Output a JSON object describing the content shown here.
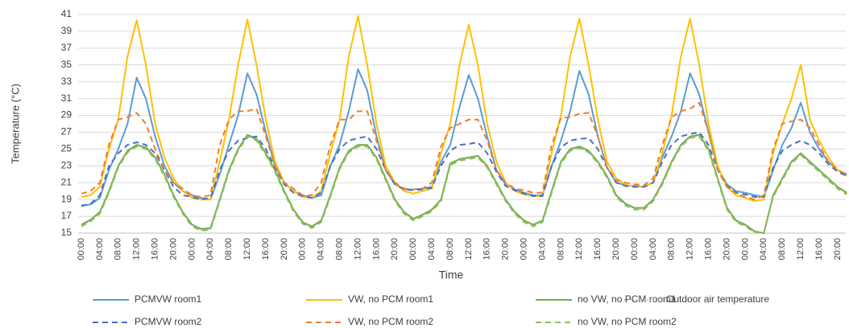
{
  "chart_data": {
    "type": "line",
    "x_label": "Time",
    "y_label": "Temperature (°C)",
    "categories": [
      "00:00",
      null,
      "04:00",
      null,
      "08:00",
      null,
      "12:00",
      null,
      "16:00",
      null,
      "20:00",
      null,
      "00:00",
      null,
      "04:00",
      null,
      "08:00",
      null,
      "12:00",
      null,
      "16:00",
      null,
      "20:00",
      null,
      "00:00",
      null,
      "04:00",
      null,
      "08:00",
      null,
      "12:00",
      null,
      "16:00",
      null,
      "20:00",
      null,
      "00:00",
      null,
      "04:00",
      null,
      "08:00",
      null,
      "12:00",
      null,
      "16:00",
      null,
      "20:00",
      null,
      "00:00",
      null,
      "04:00",
      null,
      "08:00",
      null,
      "12:00",
      null,
      "16:00",
      null,
      "20:00",
      null,
      "00:00",
      null,
      "04:00",
      null,
      "08:00",
      null,
      "12:00",
      null,
      "16:00",
      null,
      "20:00",
      null,
      "00:00",
      null,
      "04:00",
      null,
      "08:00",
      null,
      "12:00",
      null,
      "16:00",
      null,
      "20:00",
      null
    ],
    "ylim": [
      15,
      41
    ],
    "yticks": [
      15,
      17,
      19,
      21,
      23,
      25,
      27,
      29,
      31,
      33,
      35,
      37,
      39,
      41
    ],
    "grid": true,
    "series": [
      {
        "name": "PCMVW room1",
        "color": "#5b9bd5",
        "dash": "solid",
        "values": [
          18.3,
          18.4,
          19.2,
          22.5,
          25.0,
          28.0,
          33.5,
          31.0,
          26.5,
          23.0,
          21.0,
          20.0,
          19.5,
          19.2,
          19.0,
          22.0,
          25.5,
          29.0,
          34.0,
          31.5,
          27.0,
          23.0,
          21.0,
          20.0,
          19.5,
          19.2,
          19.5,
          23.0,
          25.5,
          29.5,
          34.5,
          32.0,
          26.5,
          22.5,
          20.8,
          20.2,
          20.2,
          20.3,
          20.5,
          23.5,
          25.5,
          30.0,
          33.8,
          31.0,
          26.5,
          22.5,
          20.8,
          20.2,
          19.8,
          19.5,
          19.5,
          23.0,
          26.0,
          29.5,
          34.3,
          31.5,
          26.5,
          22.8,
          21.0,
          20.7,
          20.6,
          20.5,
          21.0,
          24.0,
          26.5,
          29.5,
          34.0,
          31.5,
          27.0,
          22.8,
          20.8,
          20.0,
          19.8,
          19.5,
          19.3,
          22.5,
          25.5,
          27.5,
          30.5,
          27.0,
          25.0,
          23.5,
          22.5,
          22.0
        ]
      },
      {
        "name": "VW, no PCM room1",
        "color": "#ffc000",
        "dash": "solid",
        "values": [
          19.3,
          19.5,
          20.5,
          25.0,
          28.5,
          36.0,
          40.3,
          35.0,
          28.0,
          24.0,
          21.5,
          20.0,
          19.2,
          19.0,
          19.0,
          23.5,
          28.5,
          35.0,
          40.4,
          35.0,
          28.5,
          23.5,
          21.0,
          20.0,
          19.3,
          19.2,
          20.0,
          24.5,
          28.5,
          36.0,
          40.8,
          35.0,
          28.0,
          23.0,
          21.0,
          20.0,
          19.7,
          20.0,
          20.3,
          24.5,
          28.0,
          35.0,
          39.8,
          35.0,
          28.0,
          23.5,
          21.0,
          20.0,
          19.6,
          19.4,
          19.4,
          24.5,
          29.0,
          36.0,
          40.5,
          35.0,
          28.5,
          23.5,
          21.5,
          20.8,
          20.5,
          20.5,
          21.0,
          24.5,
          29.0,
          36.0,
          40.5,
          35.0,
          28.0,
          23.0,
          20.5,
          19.5,
          19.2,
          18.8,
          19.0,
          24.5,
          28.0,
          31.0,
          35.0,
          28.5,
          26.0,
          24.0,
          22.5,
          21.8
        ]
      },
      {
        "name": "no VW, no PCM room1",
        "color": "#70ad47",
        "dash": "solid",
        "values": [
          16.0,
          16.6,
          17.5,
          20.0,
          23.0,
          24.8,
          25.5,
          25.2,
          24.0,
          22.0,
          19.5,
          17.5,
          16.0,
          15.5,
          15.6,
          19.0,
          22.5,
          25.0,
          26.7,
          26.2,
          24.5,
          22.5,
          20.0,
          17.8,
          16.3,
          15.8,
          16.5,
          19.5,
          22.8,
          24.8,
          25.5,
          25.5,
          24.0,
          21.5,
          19.0,
          17.5,
          16.7,
          17.2,
          17.8,
          19.0,
          23.3,
          23.8,
          24.0,
          24.2,
          23.0,
          21.0,
          19.0,
          17.5,
          16.5,
          16.0,
          16.5,
          20.0,
          23.5,
          25.0,
          25.3,
          24.8,
          23.5,
          21.8,
          19.5,
          18.5,
          18.0,
          18.0,
          19.0,
          21.0,
          23.5,
          25.5,
          26.5,
          26.7,
          25.0,
          21.5,
          18.0,
          16.5,
          16.0,
          15.2,
          15.0,
          19.5,
          21.5,
          23.5,
          24.5,
          23.5,
          22.5,
          21.5,
          20.5,
          19.8
        ]
      },
      {
        "name": "Outdoor air temperature",
        "color": "#a5a5a5",
        "dash": "dotted",
        "values": [
          15.9,
          16.5,
          17.4,
          19.9,
          22.9,
          24.7,
          25.4,
          25.1,
          23.9,
          21.9,
          19.4,
          17.4,
          15.9,
          15.4,
          15.5,
          18.9,
          22.4,
          24.9,
          26.6,
          26.1,
          24.4,
          22.4,
          19.9,
          17.7,
          16.2,
          15.7,
          16.4,
          19.4,
          22.7,
          24.7,
          25.4,
          25.4,
          23.9,
          21.4,
          18.9,
          17.4,
          16.6,
          17.1,
          17.7,
          18.9,
          23.2,
          23.7,
          23.9,
          24.1,
          22.9,
          20.9,
          18.9,
          17.4,
          16.4,
          15.9,
          16.4,
          19.9,
          23.4,
          24.9,
          25.2,
          24.7,
          23.4,
          21.7,
          19.4,
          18.4,
          17.9,
          17.9,
          18.9,
          20.9,
          23.4,
          25.4,
          26.4,
          26.6,
          24.9,
          21.4,
          17.9,
          16.4,
          15.9,
          15.1,
          15.0,
          19.4,
          21.4,
          23.4,
          24.4,
          23.4,
          22.4,
          21.4,
          20.4,
          19.7
        ]
      },
      {
        "name": "PCMVW room2",
        "color": "#4472c4",
        "dash": "dashed",
        "values": [
          18.2,
          18.5,
          19.5,
          23.0,
          24.5,
          25.5,
          25.8,
          25.5,
          24.5,
          22.5,
          20.5,
          19.5,
          19.3,
          19.0,
          19.2,
          22.5,
          24.8,
          26.0,
          26.3,
          26.5,
          25.0,
          22.8,
          20.8,
          19.8,
          19.4,
          19.2,
          19.8,
          23.0,
          25.0,
          26.0,
          26.3,
          26.5,
          25.0,
          22.5,
          20.8,
          20.2,
          20.1,
          20.2,
          20.4,
          23.0,
          24.8,
          25.5,
          25.6,
          25.8,
          24.5,
          22.3,
          20.6,
          20.1,
          19.7,
          19.4,
          19.4,
          23.0,
          25.2,
          26.0,
          26.2,
          26.3,
          25.0,
          22.8,
          21.0,
          20.6,
          20.5,
          20.5,
          21.0,
          23.5,
          25.5,
          26.5,
          26.8,
          27.0,
          25.5,
          22.5,
          20.6,
          19.8,
          19.6,
          19.3,
          19.3,
          22.8,
          24.8,
          25.5,
          26.0,
          25.5,
          24.5,
          23.2,
          22.3,
          21.8
        ]
      },
      {
        "name": "VW, no PCM room2",
        "color": "#ed7d31",
        "dash": "dashed",
        "values": [
          19.7,
          20.0,
          21.0,
          25.5,
          28.5,
          28.8,
          29.3,
          28.0,
          25.0,
          22.5,
          21.0,
          20.3,
          19.5,
          19.3,
          19.5,
          25.5,
          28.5,
          29.5,
          29.5,
          29.8,
          26.5,
          23.0,
          21.0,
          20.3,
          19.5,
          19.5,
          21.0,
          25.5,
          28.5,
          28.5,
          29.5,
          29.5,
          26.0,
          22.5,
          21.0,
          20.3,
          20.2,
          20.3,
          21.0,
          25.3,
          27.5,
          28.0,
          28.5,
          28.5,
          26.0,
          22.5,
          21.0,
          20.3,
          20.1,
          19.8,
          19.8,
          25.5,
          28.7,
          28.8,
          29.2,
          29.3,
          26.5,
          22.8,
          21.3,
          21.0,
          20.8,
          20.7,
          21.5,
          25.5,
          28.8,
          29.5,
          29.8,
          30.5,
          27.0,
          22.5,
          20.5,
          19.7,
          19.3,
          19.0,
          19.5,
          25.0,
          28.0,
          28.3,
          28.5,
          27.5,
          25.5,
          23.5,
          22.5,
          22.0
        ]
      },
      {
        "name": "no VW, no PCM room2",
        "color": "#8cc152",
        "dash": "dashed",
        "values": [
          15.8,
          16.4,
          17.3,
          19.8,
          22.8,
          24.6,
          25.3,
          25.0,
          23.8,
          21.8,
          19.3,
          17.3,
          15.8,
          15.3,
          15.4,
          18.8,
          22.3,
          24.8,
          26.5,
          26.0,
          24.3,
          22.3,
          19.8,
          17.6,
          16.1,
          15.6,
          16.3,
          19.3,
          22.6,
          24.6,
          25.3,
          25.3,
          23.8,
          21.3,
          18.8,
          17.3,
          16.5,
          17.0,
          17.6,
          18.8,
          23.1,
          23.6,
          23.8,
          24.0,
          22.8,
          20.8,
          18.8,
          17.3,
          16.3,
          15.8,
          16.3,
          19.8,
          23.3,
          24.8,
          25.1,
          24.6,
          23.3,
          21.6,
          19.3,
          18.3,
          17.8,
          17.8,
          18.8,
          20.8,
          23.3,
          25.3,
          26.3,
          26.5,
          24.8,
          21.3,
          17.8,
          16.3,
          15.8,
          15.1,
          15.0,
          19.3,
          21.3,
          23.3,
          24.3,
          23.3,
          22.3,
          21.3,
          20.3,
          19.6
        ]
      }
    ]
  }
}
